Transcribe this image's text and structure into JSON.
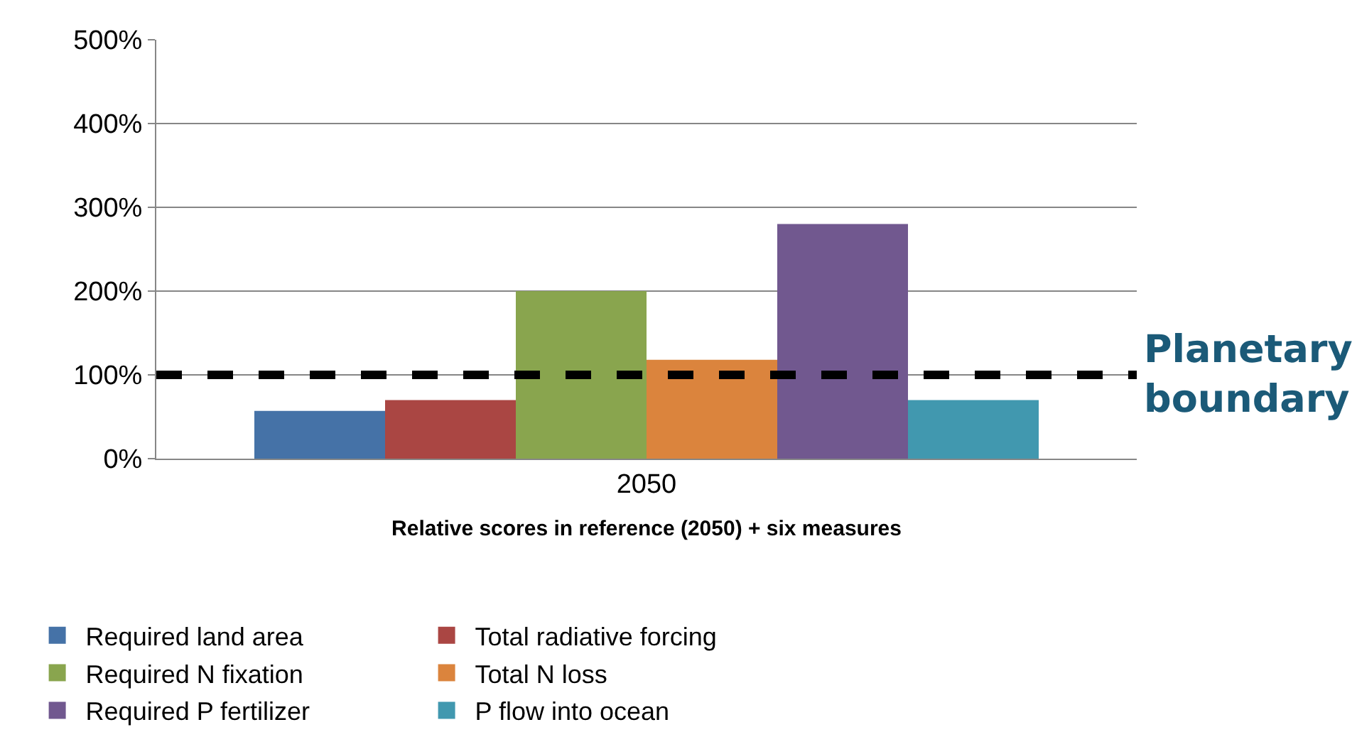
{
  "chart_data": {
    "type": "bar",
    "xlabel": "Relative scores in reference (2050) + six measures",
    "categories": [
      "2050"
    ],
    "series": [
      {
        "name": "Required land area",
        "color": "#4572a7",
        "values": [
          57
        ]
      },
      {
        "name": "Total radiative forcing",
        "color": "#aa4643",
        "values": [
          70
        ]
      },
      {
        "name": "Required N fixation",
        "color": "#89a54e",
        "values": [
          200
        ]
      },
      {
        "name": "Total N loss",
        "color": "#db843d",
        "values": [
          118
        ]
      },
      {
        "name": "Required P fertilizer",
        "color": "#71588f",
        "values": [
          280
        ]
      },
      {
        "name": "P flow into ocean",
        "color": "#4198af",
        "values": [
          70
        ]
      }
    ],
    "ylim": [
      0,
      500
    ],
    "yticks": [
      {
        "value": 0,
        "label": "0%"
      },
      {
        "value": 100,
        "label": "100%"
      },
      {
        "value": 200,
        "label": "200%"
      },
      {
        "value": 300,
        "label": "300%"
      },
      {
        "value": 400,
        "label": "400%"
      },
      {
        "value": 500,
        "label": "500%"
      }
    ],
    "ref_lines": [
      {
        "axis": "y",
        "value": 100,
        "label": "Planetary boundary",
        "color": "#000000",
        "line_style": "dashed"
      }
    ],
    "grid": "y",
    "legend": "bottom"
  }
}
